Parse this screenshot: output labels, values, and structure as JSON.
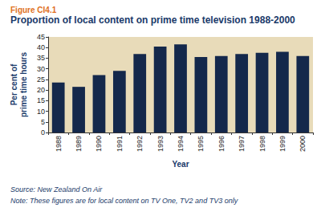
{
  "chart_data": {
    "type": "bar",
    "caption": "Figure CI4.1",
    "title": "Proportion of local content on prime time television 1988-2000",
    "xlabel": "Year",
    "ylabel": "Per cent of\nprime time hours",
    "source": "Source: New Zealand On Air",
    "note": "Note: These figures are for local content on TV One, TV2 and TV3 only",
    "categories": [
      "1988",
      "1989",
      "1990",
      "1991",
      "1992",
      "1993",
      "1994",
      "1995",
      "1996",
      "1997",
      "1998",
      "1999",
      "2000"
    ],
    "values": [
      23.5,
      21.5,
      27,
      29,
      37,
      40.5,
      41.5,
      35.5,
      36,
      37,
      37.5,
      38,
      36
    ],
    "color": "#14284b",
    "ylim": [
      0,
      45
    ],
    "yticks": [
      0,
      5,
      10,
      15,
      20,
      25,
      30,
      35,
      40,
      45
    ],
    "grid": false
  }
}
